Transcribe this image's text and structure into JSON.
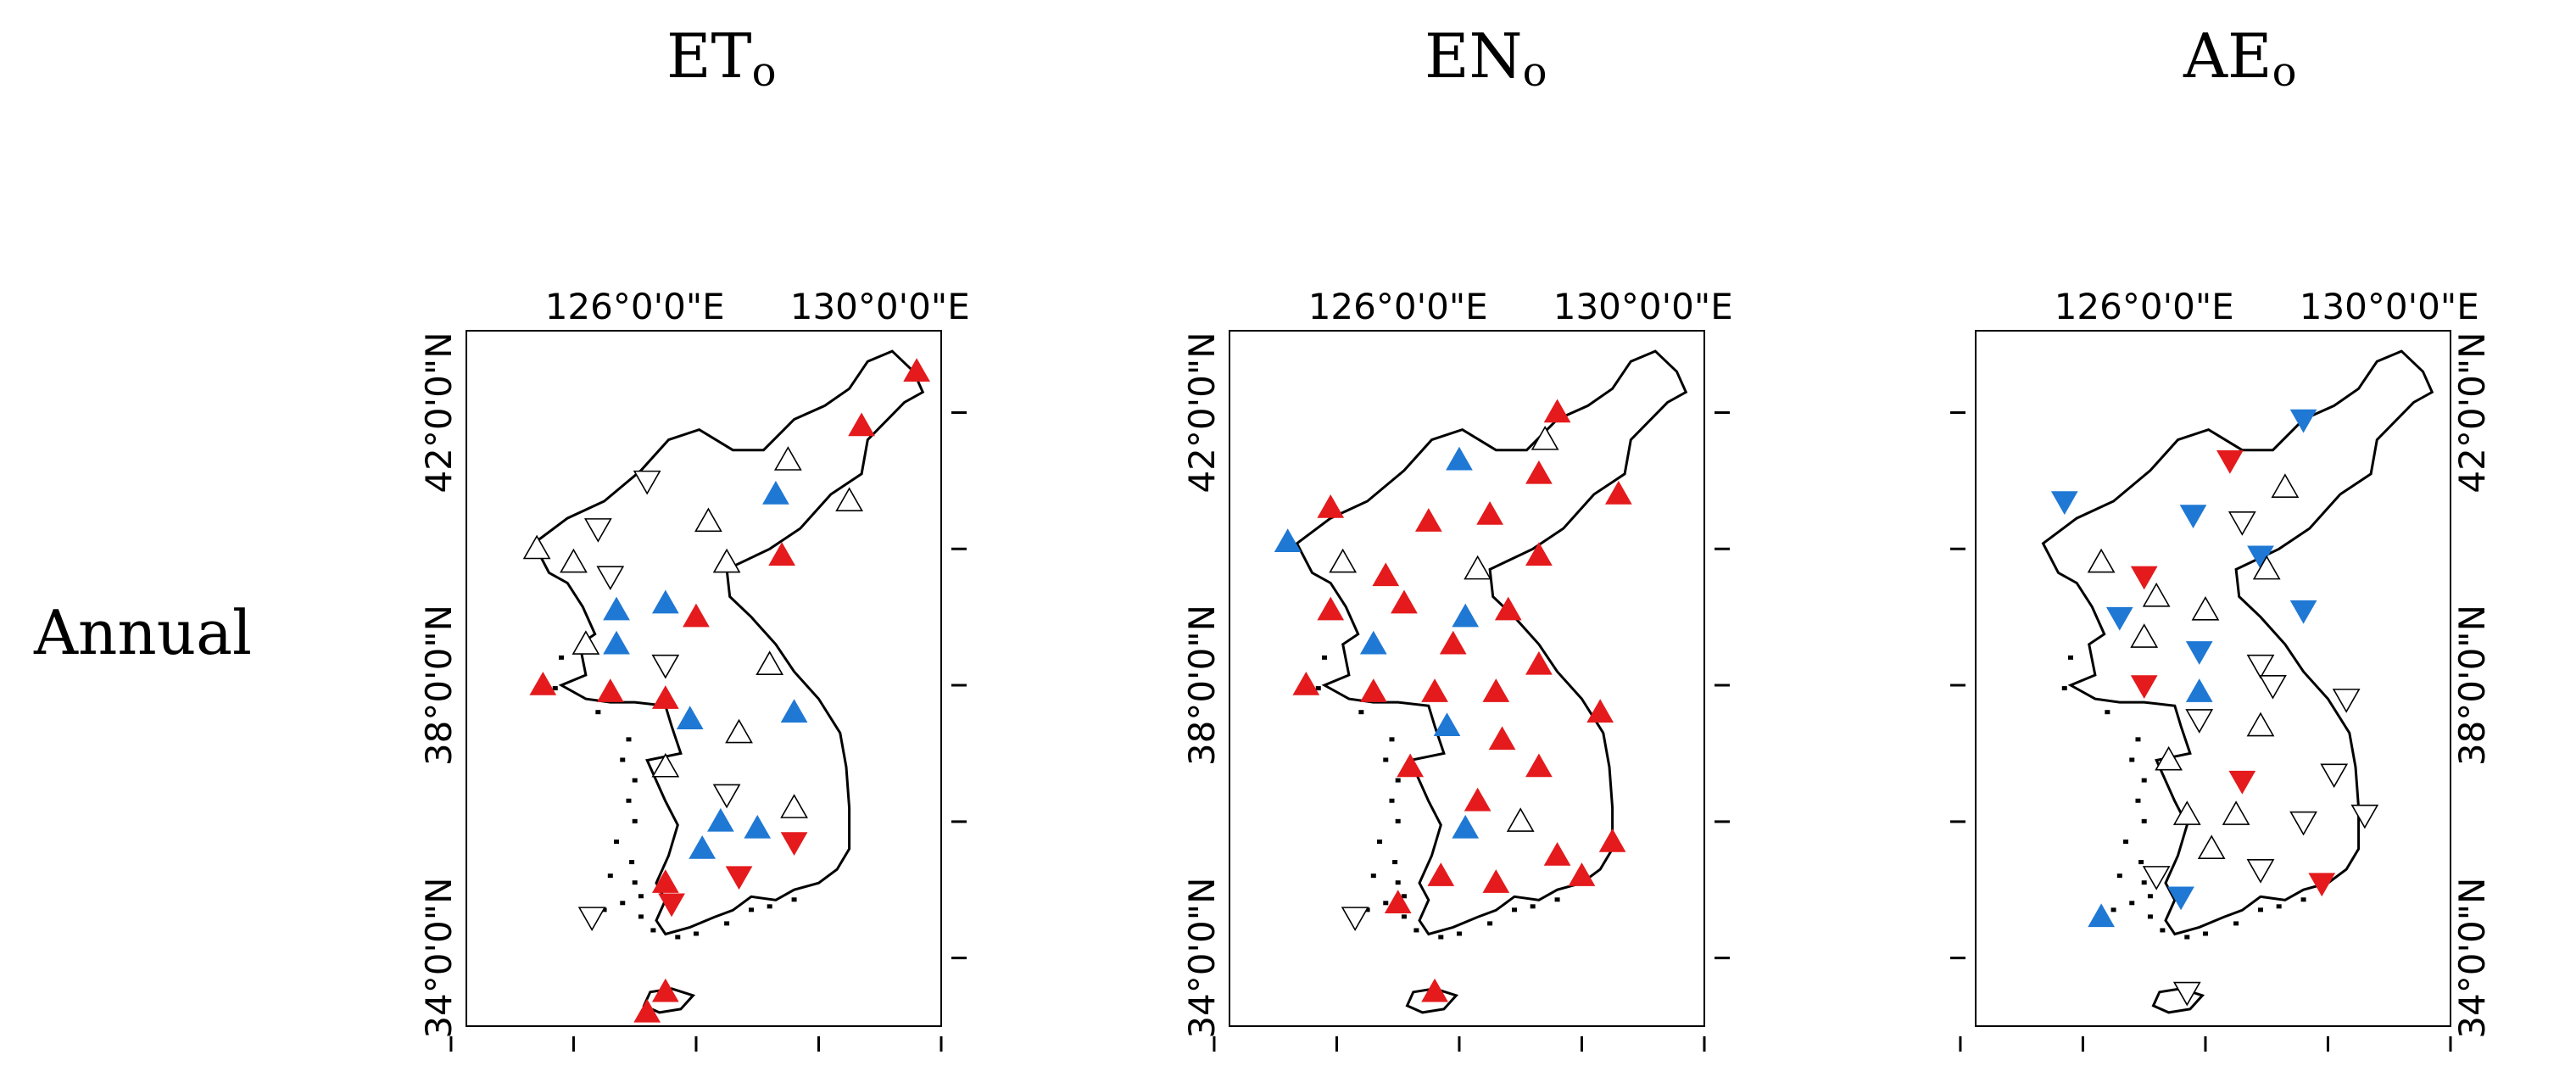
{
  "row_label": "Annual",
  "panels": [
    {
      "id": "eto",
      "title_main": "ET",
      "title_sub": "o"
    },
    {
      "id": "eno",
      "title_main": "EN",
      "title_sub": "o"
    },
    {
      "id": "aeo",
      "title_main": "AE",
      "title_sub": "o"
    }
  ],
  "axes": {
    "x_tick_labels": [
      "126°0'0\"E",
      "130°0'0\"E"
    ],
    "y_tick_labels": [
      "42°0'0\"N",
      "38°0'0\"N",
      "34°0'0\"N"
    ]
  },
  "legend_colors": {
    "positive_significant": "#e41a1c",
    "negative_significant": "#1f78d4",
    "not_significant": "#ffffff"
  },
  "stations": {
    "eto": [
      {
        "lon": 130.6,
        "lat": 42.6,
        "dir": "up",
        "sig": "pos"
      },
      {
        "lon": 129.7,
        "lat": 41.8,
        "dir": "up",
        "sig": "pos"
      },
      {
        "lon": 128.5,
        "lat": 41.3,
        "dir": "up",
        "sig": "none"
      },
      {
        "lon": 128.3,
        "lat": 40.8,
        "dir": "up",
        "sig": "neg"
      },
      {
        "lon": 129.5,
        "lat": 40.7,
        "dir": "up",
        "sig": "none"
      },
      {
        "lon": 126.2,
        "lat": 41.0,
        "dir": "down",
        "sig": "none"
      },
      {
        "lon": 125.4,
        "lat": 40.3,
        "dir": "down",
        "sig": "none"
      },
      {
        "lon": 127.2,
        "lat": 40.4,
        "dir": "up",
        "sig": "none"
      },
      {
        "lon": 124.4,
        "lat": 40.0,
        "dir": "up",
        "sig": "none"
      },
      {
        "lon": 125.0,
        "lat": 39.8,
        "dir": "up",
        "sig": "none"
      },
      {
        "lon": 125.6,
        "lat": 39.6,
        "dir": "down",
        "sig": "none"
      },
      {
        "lon": 128.4,
        "lat": 39.9,
        "dir": "up",
        "sig": "pos"
      },
      {
        "lon": 127.5,
        "lat": 39.8,
        "dir": "up",
        "sig": "none"
      },
      {
        "lon": 125.7,
        "lat": 39.1,
        "dir": "up",
        "sig": "neg"
      },
      {
        "lon": 126.5,
        "lat": 39.2,
        "dir": "up",
        "sig": "neg"
      },
      {
        "lon": 127.0,
        "lat": 39.0,
        "dir": "up",
        "sig": "pos"
      },
      {
        "lon": 125.2,
        "lat": 38.6,
        "dir": "up",
        "sig": "none"
      },
      {
        "lon": 125.7,
        "lat": 38.6,
        "dir": "up",
        "sig": "neg"
      },
      {
        "lon": 126.5,
        "lat": 38.3,
        "dir": "down",
        "sig": "none"
      },
      {
        "lon": 128.2,
        "lat": 38.3,
        "dir": "up",
        "sig": "none"
      },
      {
        "lon": 124.5,
        "lat": 38.0,
        "dir": "up",
        "sig": "pos"
      },
      {
        "lon": 125.6,
        "lat": 37.9,
        "dir": "up",
        "sig": "pos"
      },
      {
        "lon": 126.5,
        "lat": 37.8,
        "dir": "up",
        "sig": "pos"
      },
      {
        "lon": 126.9,
        "lat": 37.5,
        "dir": "up",
        "sig": "neg"
      },
      {
        "lon": 128.6,
        "lat": 37.6,
        "dir": "up",
        "sig": "neg"
      },
      {
        "lon": 127.7,
        "lat": 37.3,
        "dir": "up",
        "sig": "none"
      },
      {
        "lon": 126.5,
        "lat": 36.8,
        "dir": "up",
        "sig": "none"
      },
      {
        "lon": 127.5,
        "lat": 36.4,
        "dir": "down",
        "sig": "none"
      },
      {
        "lon": 127.4,
        "lat": 36.0,
        "dir": "up",
        "sig": "neg"
      },
      {
        "lon": 128.0,
        "lat": 35.9,
        "dir": "up",
        "sig": "neg"
      },
      {
        "lon": 128.6,
        "lat": 36.2,
        "dir": "up",
        "sig": "none"
      },
      {
        "lon": 128.6,
        "lat": 35.7,
        "dir": "down",
        "sig": "pos"
      },
      {
        "lon": 127.1,
        "lat": 35.6,
        "dir": "up",
        "sig": "neg"
      },
      {
        "lon": 126.5,
        "lat": 35.1,
        "dir": "up",
        "sig": "pos"
      },
      {
        "lon": 127.7,
        "lat": 35.2,
        "dir": "down",
        "sig": "pos"
      },
      {
        "lon": 126.6,
        "lat": 34.8,
        "dir": "down",
        "sig": "pos"
      },
      {
        "lon": 125.3,
        "lat": 34.6,
        "dir": "down",
        "sig": "none"
      },
      {
        "lon": 126.5,
        "lat": 33.5,
        "dir": "up",
        "sig": "pos"
      },
      {
        "lon": 126.2,
        "lat": 33.2,
        "dir": "up",
        "sig": "pos"
      }
    ],
    "eno": [
      {
        "lon": 128.6,
        "lat": 42.0,
        "dir": "up",
        "sig": "pos"
      },
      {
        "lon": 128.4,
        "lat": 41.6,
        "dir": "up",
        "sig": "none"
      },
      {
        "lon": 127.0,
        "lat": 41.3,
        "dir": "up",
        "sig": "neg"
      },
      {
        "lon": 128.3,
        "lat": 41.1,
        "dir": "up",
        "sig": "pos"
      },
      {
        "lon": 129.6,
        "lat": 40.8,
        "dir": "up",
        "sig": "pos"
      },
      {
        "lon": 124.9,
        "lat": 40.6,
        "dir": "up",
        "sig": "pos"
      },
      {
        "lon": 126.5,
        "lat": 40.4,
        "dir": "up",
        "sig": "pos"
      },
      {
        "lon": 127.5,
        "lat": 40.5,
        "dir": "up",
        "sig": "pos"
      },
      {
        "lon": 124.2,
        "lat": 40.1,
        "dir": "up",
        "sig": "neg"
      },
      {
        "lon": 125.1,
        "lat": 39.8,
        "dir": "up",
        "sig": "none"
      },
      {
        "lon": 125.8,
        "lat": 39.6,
        "dir": "up",
        "sig": "pos"
      },
      {
        "lon": 128.3,
        "lat": 39.9,
        "dir": "up",
        "sig": "pos"
      },
      {
        "lon": 127.3,
        "lat": 39.7,
        "dir": "up",
        "sig": "none"
      },
      {
        "lon": 124.9,
        "lat": 39.1,
        "dir": "up",
        "sig": "pos"
      },
      {
        "lon": 126.1,
        "lat": 39.2,
        "dir": "up",
        "sig": "pos"
      },
      {
        "lon": 127.1,
        "lat": 39.0,
        "dir": "up",
        "sig": "neg"
      },
      {
        "lon": 127.8,
        "lat": 39.1,
        "dir": "up",
        "sig": "pos"
      },
      {
        "lon": 125.6,
        "lat": 38.6,
        "dir": "up",
        "sig": "neg"
      },
      {
        "lon": 126.9,
        "lat": 38.6,
        "dir": "up",
        "sig": "pos"
      },
      {
        "lon": 128.3,
        "lat": 38.3,
        "dir": "up",
        "sig": "pos"
      },
      {
        "lon": 124.5,
        "lat": 38.0,
        "dir": "up",
        "sig": "pos"
      },
      {
        "lon": 125.6,
        "lat": 37.9,
        "dir": "up",
        "sig": "pos"
      },
      {
        "lon": 126.6,
        "lat": 37.9,
        "dir": "up",
        "sig": "pos"
      },
      {
        "lon": 127.6,
        "lat": 37.9,
        "dir": "up",
        "sig": "pos"
      },
      {
        "lon": 126.8,
        "lat": 37.4,
        "dir": "up",
        "sig": "neg"
      },
      {
        "lon": 127.7,
        "lat": 37.2,
        "dir": "up",
        "sig": "pos"
      },
      {
        "lon": 129.3,
        "lat": 37.6,
        "dir": "up",
        "sig": "pos"
      },
      {
        "lon": 126.2,
        "lat": 36.8,
        "dir": "up",
        "sig": "pos"
      },
      {
        "lon": 128.3,
        "lat": 36.8,
        "dir": "up",
        "sig": "pos"
      },
      {
        "lon": 127.3,
        "lat": 36.3,
        "dir": "up",
        "sig": "pos"
      },
      {
        "lon": 128.0,
        "lat": 36.0,
        "dir": "up",
        "sig": "none"
      },
      {
        "lon": 127.1,
        "lat": 35.9,
        "dir": "up",
        "sig": "neg"
      },
      {
        "lon": 128.6,
        "lat": 35.5,
        "dir": "up",
        "sig": "pos"
      },
      {
        "lon": 129.5,
        "lat": 35.7,
        "dir": "up",
        "sig": "pos"
      },
      {
        "lon": 126.7,
        "lat": 35.2,
        "dir": "up",
        "sig": "pos"
      },
      {
        "lon": 127.6,
        "lat": 35.1,
        "dir": "up",
        "sig": "pos"
      },
      {
        "lon": 129.0,
        "lat": 35.2,
        "dir": "up",
        "sig": "pos"
      },
      {
        "lon": 126.0,
        "lat": 34.8,
        "dir": "up",
        "sig": "pos"
      },
      {
        "lon": 125.3,
        "lat": 34.6,
        "dir": "down",
        "sig": "none"
      },
      {
        "lon": 126.6,
        "lat": 33.5,
        "dir": "up",
        "sig": "pos"
      }
    ],
    "aeo": [
      {
        "lon": 128.6,
        "lat": 41.9,
        "dir": "down",
        "sig": "neg"
      },
      {
        "lon": 127.4,
        "lat": 41.3,
        "dir": "down",
        "sig": "pos"
      },
      {
        "lon": 128.3,
        "lat": 40.9,
        "dir": "up",
        "sig": "none"
      },
      {
        "lon": 124.7,
        "lat": 40.7,
        "dir": "down",
        "sig": "neg"
      },
      {
        "lon": 126.8,
        "lat": 40.5,
        "dir": "down",
        "sig": "neg"
      },
      {
        "lon": 127.6,
        "lat": 40.4,
        "dir": "down",
        "sig": "none"
      },
      {
        "lon": 125.3,
        "lat": 39.8,
        "dir": "up",
        "sig": "none"
      },
      {
        "lon": 126.0,
        "lat": 39.6,
        "dir": "down",
        "sig": "pos"
      },
      {
        "lon": 127.9,
        "lat": 39.9,
        "dir": "down",
        "sig": "neg"
      },
      {
        "lon": 128.0,
        "lat": 39.7,
        "dir": "up",
        "sig": "none"
      },
      {
        "lon": 125.6,
        "lat": 39.0,
        "dir": "down",
        "sig": "neg"
      },
      {
        "lon": 126.2,
        "lat": 39.3,
        "dir": "up",
        "sig": "none"
      },
      {
        "lon": 127.0,
        "lat": 39.1,
        "dir": "up",
        "sig": "none"
      },
      {
        "lon": 128.6,
        "lat": 39.1,
        "dir": "down",
        "sig": "neg"
      },
      {
        "lon": 126.0,
        "lat": 38.7,
        "dir": "up",
        "sig": "none"
      },
      {
        "lon": 126.9,
        "lat": 38.5,
        "dir": "down",
        "sig": "neg"
      },
      {
        "lon": 127.9,
        "lat": 38.3,
        "dir": "down",
        "sig": "none"
      },
      {
        "lon": 126.0,
        "lat": 38.0,
        "dir": "down",
        "sig": "pos"
      },
      {
        "lon": 126.9,
        "lat": 37.9,
        "dir": "up",
        "sig": "neg"
      },
      {
        "lon": 128.1,
        "lat": 38.0,
        "dir": "down",
        "sig": "none"
      },
      {
        "lon": 129.3,
        "lat": 37.8,
        "dir": "down",
        "sig": "none"
      },
      {
        "lon": 126.9,
        "lat": 37.5,
        "dir": "down",
        "sig": "none"
      },
      {
        "lon": 127.9,
        "lat": 37.4,
        "dir": "up",
        "sig": "none"
      },
      {
        "lon": 126.4,
        "lat": 36.9,
        "dir": "up",
        "sig": "none"
      },
      {
        "lon": 127.6,
        "lat": 36.6,
        "dir": "down",
        "sig": "pos"
      },
      {
        "lon": 129.1,
        "lat": 36.7,
        "dir": "down",
        "sig": "none"
      },
      {
        "lon": 126.7,
        "lat": 36.1,
        "dir": "up",
        "sig": "none"
      },
      {
        "lon": 127.5,
        "lat": 36.1,
        "dir": "up",
        "sig": "none"
      },
      {
        "lon": 128.6,
        "lat": 36.0,
        "dir": "down",
        "sig": "none"
      },
      {
        "lon": 129.6,
        "lat": 36.1,
        "dir": "down",
        "sig": "none"
      },
      {
        "lon": 127.1,
        "lat": 35.6,
        "dir": "up",
        "sig": "none"
      },
      {
        "lon": 126.2,
        "lat": 35.2,
        "dir": "down",
        "sig": "none"
      },
      {
        "lon": 127.9,
        "lat": 35.3,
        "dir": "down",
        "sig": "none"
      },
      {
        "lon": 128.9,
        "lat": 35.1,
        "dir": "down",
        "sig": "pos"
      },
      {
        "lon": 126.6,
        "lat": 34.9,
        "dir": "down",
        "sig": "neg"
      },
      {
        "lon": 125.3,
        "lat": 34.6,
        "dir": "up",
        "sig": "neg"
      },
      {
        "lon": 126.7,
        "lat": 33.5,
        "dir": "down",
        "sig": "none"
      }
    ]
  }
}
